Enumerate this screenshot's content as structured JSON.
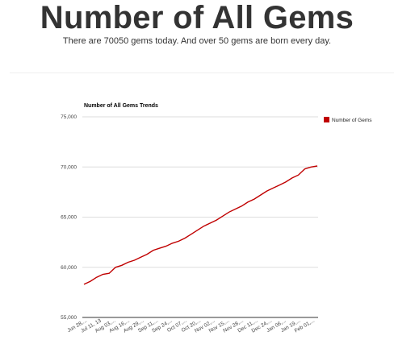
{
  "header": {
    "title": "Number of All Gems",
    "subtitle": "There are 70050 gems today. And over 50 gems are born every day."
  },
  "chart_data": {
    "type": "line",
    "title": "Number of All Gems Trends",
    "xlabel": "",
    "ylabel": "",
    "ylim": [
      55000,
      75000
    ],
    "yticks": [
      55000,
      60000,
      65000,
      70000,
      75000
    ],
    "ytick_labels": [
      "55,000",
      "60,000",
      "65,000",
      "70,000",
      "75,000"
    ],
    "xtick_labels": [
      "Jun 28,...",
      "Jul 11, 13",
      "Aug 03,...",
      "Aug 16,...",
      "Aug 29,...",
      "Sep 11,...",
      "Sep 24,...",
      "Oct 07,...",
      "Oct 20,...",
      "Nov 02,...",
      "Nov 15,...",
      "Nov 28,...",
      "Dec 11,...",
      "Dec 24,...",
      "Jan 06,...",
      "Jan 19,...",
      "Feb 01,..."
    ],
    "grid": true,
    "legend": "right",
    "series": [
      {
        "name": "Number of Gems",
        "color": "#c00000",
        "x": [
          "Jun 28",
          "Jul 04",
          "Jul 11",
          "Jul 18",
          "Jul 25",
          "Jul 29",
          "Aug 03",
          "Aug 09",
          "Aug 16",
          "Aug 22",
          "Aug 29",
          "Sep 04",
          "Sep 11",
          "Sep 17",
          "Sep 24",
          "Sep 30",
          "Oct 07",
          "Oct 13",
          "Oct 20",
          "Oct 26",
          "Nov 02",
          "Nov 08",
          "Nov 15",
          "Nov 21",
          "Nov 28",
          "Dec 04",
          "Dec 11",
          "Dec 17",
          "Dec 24",
          "Dec 30",
          "Jan 06",
          "Jan 12",
          "Jan 19",
          "Jan 25",
          "Jan 29",
          "Feb 01",
          "Feb 06",
          "Feb 11"
        ],
        "values": [
          58300,
          58600,
          59000,
          59300,
          59400,
          60000,
          60200,
          60500,
          60700,
          61000,
          61300,
          61700,
          61900,
          62100,
          62400,
          62600,
          62900,
          63300,
          63700,
          64100,
          64400,
          64700,
          65100,
          65500,
          65800,
          66100,
          66500,
          66800,
          67200,
          67600,
          67900,
          68200,
          68500,
          68900,
          69200,
          69800,
          70000,
          70100
        ]
      }
    ]
  }
}
